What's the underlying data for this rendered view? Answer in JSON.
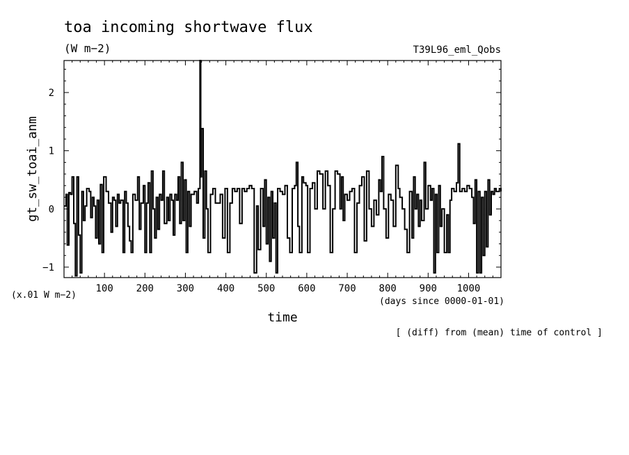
{
  "chart_data": {
    "type": "line",
    "title": "toa incoming shortwave flux",
    "subtitle": "(W m−2)",
    "run_label": "T39L96_eml_Qobs",
    "xlabel": "time",
    "xunit": "(days since 0000-01-01)",
    "ylabel": "gt_sw_toai_anm",
    "yunit": "(x.01 W m−2)",
    "note": "[ (diff) from (mean) time of control ]",
    "xlim": [
      0,
      1080
    ],
    "ylim": [
      -1.18,
      2.55
    ],
    "x_ticks": [
      100,
      200,
      300,
      400,
      500,
      600,
      700,
      800,
      900,
      1000
    ],
    "y_ticks": [
      -1,
      0,
      1,
      2
    ],
    "grid": false,
    "series": [
      {
        "values": [
          [
            0,
            0.05
          ],
          [
            5,
            0.25
          ],
          [
            8,
            -0.62
          ],
          [
            12,
            0.28
          ],
          [
            16,
            0.25
          ],
          [
            20,
            0.55
          ],
          [
            24,
            -0.25
          ],
          [
            28,
            -1.15
          ],
          [
            32,
            0.55
          ],
          [
            36,
            -0.45
          ],
          [
            40,
            -1.1
          ],
          [
            44,
            0.3
          ],
          [
            48,
            -0.2
          ],
          [
            52,
            0.05
          ],
          [
            56,
            0.35
          ],
          [
            62,
            0.3
          ],
          [
            66,
            -0.15
          ],
          [
            70,
            0.2
          ],
          [
            74,
            0.05
          ],
          [
            78,
            -0.5
          ],
          [
            82,
            0.15
          ],
          [
            86,
            -0.6
          ],
          [
            90,
            0.42
          ],
          [
            94,
            -0.75
          ],
          [
            98,
            0.55
          ],
          [
            104,
            0.3
          ],
          [
            110,
            0.1
          ],
          [
            116,
            -0.4
          ],
          [
            120,
            0.2
          ],
          [
            124,
            0.15
          ],
          [
            128,
            -0.3
          ],
          [
            132,
            0.25
          ],
          [
            136,
            0.1
          ],
          [
            140,
            0.15
          ],
          [
            146,
            -0.75
          ],
          [
            150,
            0.3
          ],
          [
            154,
            0.1
          ],
          [
            158,
            -0.3
          ],
          [
            162,
            -0.55
          ],
          [
            166,
            -0.75
          ],
          [
            170,
            0.25
          ],
          [
            176,
            0.15
          ],
          [
            182,
            0.55
          ],
          [
            186,
            -0.35
          ],
          [
            190,
            0.1
          ],
          [
            196,
            0.4
          ],
          [
            200,
            -0.75
          ],
          [
            204,
            0.1
          ],
          [
            208,
            0.45
          ],
          [
            212,
            -0.75
          ],
          [
            216,
            0.65
          ],
          [
            220,
            0.0
          ],
          [
            224,
            -0.5
          ],
          [
            228,
            0.2
          ],
          [
            232,
            -0.35
          ],
          [
            236,
            0.25
          ],
          [
            240,
            0.15
          ],
          [
            244,
            0.65
          ],
          [
            248,
            -0.25
          ],
          [
            254,
            0.2
          ],
          [
            258,
            -0.2
          ],
          [
            262,
            0.25
          ],
          [
            266,
            0.15
          ],
          [
            270,
            -0.45
          ],
          [
            274,
            0.25
          ],
          [
            278,
            0.15
          ],
          [
            282,
            0.55
          ],
          [
            286,
            -0.25
          ],
          [
            290,
            0.8
          ],
          [
            294,
            -0.2
          ],
          [
            298,
            0.5
          ],
          [
            302,
            -0.75
          ],
          [
            306,
            0.3
          ],
          [
            310,
            -0.3
          ],
          [
            314,
            0.25
          ],
          [
            318,
            0.25
          ],
          [
            322,
            0.3
          ],
          [
            328,
            0.1
          ],
          [
            332,
            0.35
          ],
          [
            336,
            2.55
          ],
          [
            338,
            0.55
          ],
          [
            340,
            1.38
          ],
          [
            344,
            -0.5
          ],
          [
            348,
            0.65
          ],
          [
            352,
            0.0
          ],
          [
            356,
            -0.75
          ],
          [
            362,
            0.25
          ],
          [
            368,
            0.35
          ],
          [
            374,
            0.1
          ],
          [
            380,
            0.1
          ],
          [
            386,
            0.25
          ],
          [
            392,
            -0.5
          ],
          [
            398,
            0.35
          ],
          [
            404,
            -0.75
          ],
          [
            410,
            0.1
          ],
          [
            416,
            0.35
          ],
          [
            422,
            0.3
          ],
          [
            428,
            0.35
          ],
          [
            434,
            -0.25
          ],
          [
            440,
            0.35
          ],
          [
            446,
            0.3
          ],
          [
            452,
            0.35
          ],
          [
            458,
            0.4
          ],
          [
            464,
            0.35
          ],
          [
            470,
            -1.1
          ],
          [
            476,
            0.05
          ],
          [
            480,
            -0.7
          ],
          [
            486,
            0.35
          ],
          [
            492,
            -0.3
          ],
          [
            496,
            0.5
          ],
          [
            500,
            -0.6
          ],
          [
            504,
            0.2
          ],
          [
            508,
            -0.9
          ],
          [
            512,
            0.3
          ],
          [
            516,
            -0.5
          ],
          [
            520,
            0.1
          ],
          [
            524,
            -1.1
          ],
          [
            528,
            0.35
          ],
          [
            534,
            0.3
          ],
          [
            540,
            0.25
          ],
          [
            546,
            0.4
          ],
          [
            552,
            -0.5
          ],
          [
            558,
            -0.75
          ],
          [
            564,
            0.35
          ],
          [
            570,
            0.4
          ],
          [
            574,
            0.8
          ],
          [
            578,
            -0.3
          ],
          [
            582,
            -0.75
          ],
          [
            588,
            0.55
          ],
          [
            592,
            0.45
          ],
          [
            598,
            0.4
          ],
          [
            602,
            -0.75
          ],
          [
            608,
            0.35
          ],
          [
            614,
            0.45
          ],
          [
            620,
            0.0
          ],
          [
            626,
            0.65
          ],
          [
            632,
            0.6
          ],
          [
            640,
            0.0
          ],
          [
            646,
            0.65
          ],
          [
            652,
            0.4
          ],
          [
            658,
            -0.75
          ],
          [
            664,
            0.0
          ],
          [
            670,
            0.65
          ],
          [
            676,
            0.6
          ],
          [
            682,
            0.0
          ],
          [
            686,
            0.55
          ],
          [
            690,
            -0.2
          ],
          [
            694,
            0.25
          ],
          [
            700,
            0.15
          ],
          [
            706,
            0.3
          ],
          [
            712,
            0.35
          ],
          [
            718,
            -0.75
          ],
          [
            724,
            0.1
          ],
          [
            730,
            0.4
          ],
          [
            736,
            0.55
          ],
          [
            742,
            -0.55
          ],
          [
            748,
            0.65
          ],
          [
            754,
            0.0
          ],
          [
            760,
            -0.3
          ],
          [
            766,
            0.15
          ],
          [
            772,
            -0.1
          ],
          [
            778,
            0.5
          ],
          [
            782,
            0.3
          ],
          [
            786,
            0.9
          ],
          [
            790,
            0.0
          ],
          [
            796,
            -0.5
          ],
          [
            802,
            0.25
          ],
          [
            808,
            0.15
          ],
          [
            814,
            -0.3
          ],
          [
            820,
            0.75
          ],
          [
            826,
            0.35
          ],
          [
            830,
            0.2
          ],
          [
            836,
            0.0
          ],
          [
            842,
            -0.35
          ],
          [
            848,
            -0.75
          ],
          [
            854,
            0.3
          ],
          [
            860,
            -0.5
          ],
          [
            864,
            0.55
          ],
          [
            868,
            0.0
          ],
          [
            872,
            0.25
          ],
          [
            876,
            -0.3
          ],
          [
            880,
            0.15
          ],
          [
            884,
            -0.2
          ],
          [
            890,
            0.8
          ],
          [
            894,
            0.0
          ],
          [
            900,
            0.4
          ],
          [
            906,
            0.15
          ],
          [
            910,
            0.35
          ],
          [
            914,
            -1.1
          ],
          [
            918,
            0.25
          ],
          [
            922,
            -0.75
          ],
          [
            926,
            0.4
          ],
          [
            930,
            -0.3
          ],
          [
            934,
            0.0
          ],
          [
            940,
            -0.75
          ],
          [
            946,
            -0.1
          ],
          [
            950,
            -0.75
          ],
          [
            954,
            0.15
          ],
          [
            958,
            0.35
          ],
          [
            964,
            0.3
          ],
          [
            970,
            0.45
          ],
          [
            974,
            1.12
          ],
          [
            978,
            0.3
          ],
          [
            984,
            0.35
          ],
          [
            990,
            0.3
          ],
          [
            996,
            0.4
          ],
          [
            1002,
            0.35
          ],
          [
            1008,
            0.2
          ],
          [
            1012,
            -0.25
          ],
          [
            1016,
            0.5
          ],
          [
            1020,
            -1.1
          ],
          [
            1024,
            0.3
          ],
          [
            1028,
            -1.1
          ],
          [
            1032,
            0.2
          ],
          [
            1036,
            -0.8
          ],
          [
            1040,
            0.3
          ],
          [
            1044,
            -0.65
          ],
          [
            1048,
            0.5
          ],
          [
            1052,
            -0.1
          ],
          [
            1056,
            0.3
          ],
          [
            1060,
            0.25
          ],
          [
            1064,
            0.35
          ],
          [
            1068,
            0.3
          ],
          [
            1072,
            0.3
          ],
          [
            1076,
            0.35
          ],
          [
            1080,
            0.3
          ]
        ]
      }
    ]
  }
}
